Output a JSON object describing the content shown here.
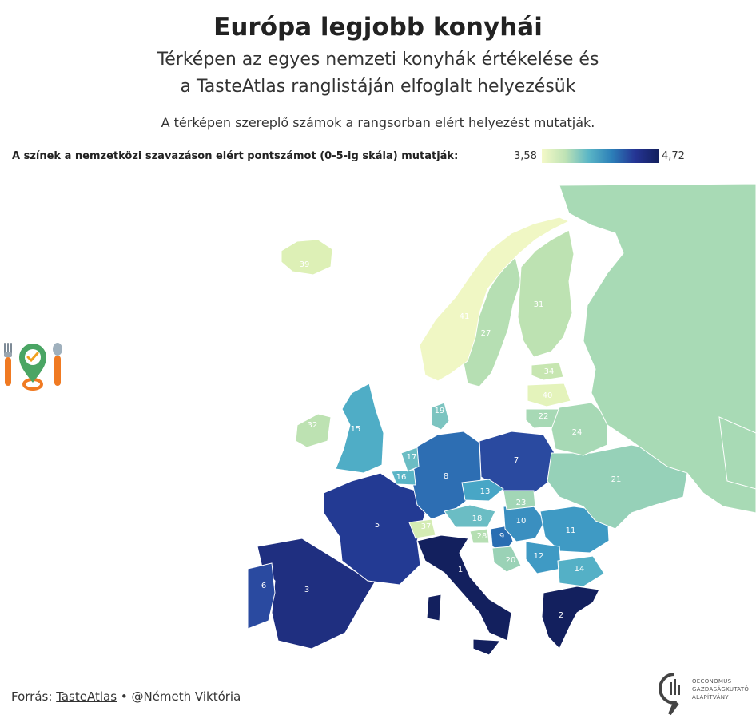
{
  "title": "Európa legjobb konyhái",
  "subtitle_line1": "Térképen az egyes nemzeti konyhák értékelése és",
  "subtitle_line2": "a TasteAtlas ranglistáján elfoglalt helyezésük",
  "note": "A térképen szereplő számok a rangsorban elért helyezést mutatják.",
  "legend": {
    "label": "A színek a nemzetközi szavazáson elért pontszámot (0-5-ig skála) mutatják:",
    "min": "3,58",
    "max": "4,72",
    "colors": [
      "#f4f9c8",
      "#bfe3b5",
      "#5bb6c6",
      "#2c7fb8",
      "#253494",
      "#13205e"
    ]
  },
  "source": {
    "prefix": "Forrás:",
    "link": "TasteAtlas",
    "separator": "•",
    "author": "@Németh Viktória"
  },
  "logo": {
    "line1": "OECONOMUS",
    "line2": "GAZDASÁGKUTATÓ",
    "line3": "ALAPÍTVÁNY"
  },
  "icons": [
    "fork-icon",
    "map-pin-check-icon",
    "spoon-icon"
  ],
  "countries": [
    {
      "name": "Olaszország",
      "rank": "1",
      "color": "#13205e"
    },
    {
      "name": "Görögország",
      "rank": "2",
      "color": "#13205e"
    },
    {
      "name": "Spanyolország",
      "rank": "3",
      "color": "#1f2f80"
    },
    {
      "name": "Franciaország",
      "rank": "5",
      "color": "#233a93"
    },
    {
      "name": "Portugália",
      "rank": "6",
      "color": "#2a4aa0"
    },
    {
      "name": "Lengyelország",
      "rank": "7",
      "color": "#2a4aa0"
    },
    {
      "name": "Németország",
      "rank": "8",
      "color": "#2d6eb3"
    },
    {
      "name": "Horvátország",
      "rank": "9",
      "color": "#2a6db2"
    },
    {
      "name": "Szerbia",
      "rank": "10",
      "color": "#3a8fc0"
    },
    {
      "name": "Románia",
      "rank": "11",
      "color": "#3f9ac4"
    },
    {
      "name": "Bulgária",
      "rank": "12",
      "color": "#3f9ac4"
    },
    {
      "name": "Csehország",
      "rank": "13",
      "color": "#48a6c6"
    },
    {
      "name": "Észak-Macedónia",
      "rank": "14",
      "color": "#54b0c6"
    },
    {
      "name": "Egyesült Királyság",
      "rank": "15",
      "color": "#4fadc6"
    },
    {
      "name": "Belgium",
      "rank": "16",
      "color": "#5ab5c6"
    },
    {
      "name": "Hollandia",
      "rank": "17",
      "color": "#6bbdc4"
    },
    {
      "name": "Ausztria",
      "rank": "18",
      "color": "#6bbdc4"
    },
    {
      "name": "Dánia",
      "rank": "19",
      "color": "#7cc4c0"
    },
    {
      "name": "Bosznia-Hercegovina",
      "rank": "20",
      "color": "#9ad2b6"
    },
    {
      "name": "Ukrajna",
      "rank": "21",
      "color": "#96d1b8"
    },
    {
      "name": "Litvánia",
      "rank": "22",
      "color": "#a7d9b5"
    },
    {
      "name": "Szlovákia",
      "rank": "23",
      "color": "#a2d6b6"
    },
    {
      "name": "Fehéroroszország",
      "rank": "24",
      "color": "#a7d9b5"
    },
    {
      "name": "Svédország",
      "rank": "27",
      "color": "#b6dfb3"
    },
    {
      "name": "Szlovénia",
      "rank": "28",
      "color": "#b6dfb3"
    },
    {
      "name": "Finnország",
      "rank": "31",
      "color": "#bde2b2"
    },
    {
      "name": "Írország",
      "rank": "32",
      "color": "#bde2b2"
    },
    {
      "name": "Észtország",
      "rank": "34",
      "color": "#c7e6b1"
    },
    {
      "name": "Svájc",
      "rank": "37",
      "color": "#d4ecb4"
    },
    {
      "name": "Izland",
      "rank": "39",
      "color": "#ddf0b6"
    },
    {
      "name": "Lettország",
      "rank": "40",
      "color": "#e4f3bb"
    },
    {
      "name": "Norvégia",
      "rank": "41",
      "color": "#f0f7c4"
    },
    {
      "name": "Oroszország",
      "rank": "",
      "color": "#a8dab5"
    }
  ]
}
